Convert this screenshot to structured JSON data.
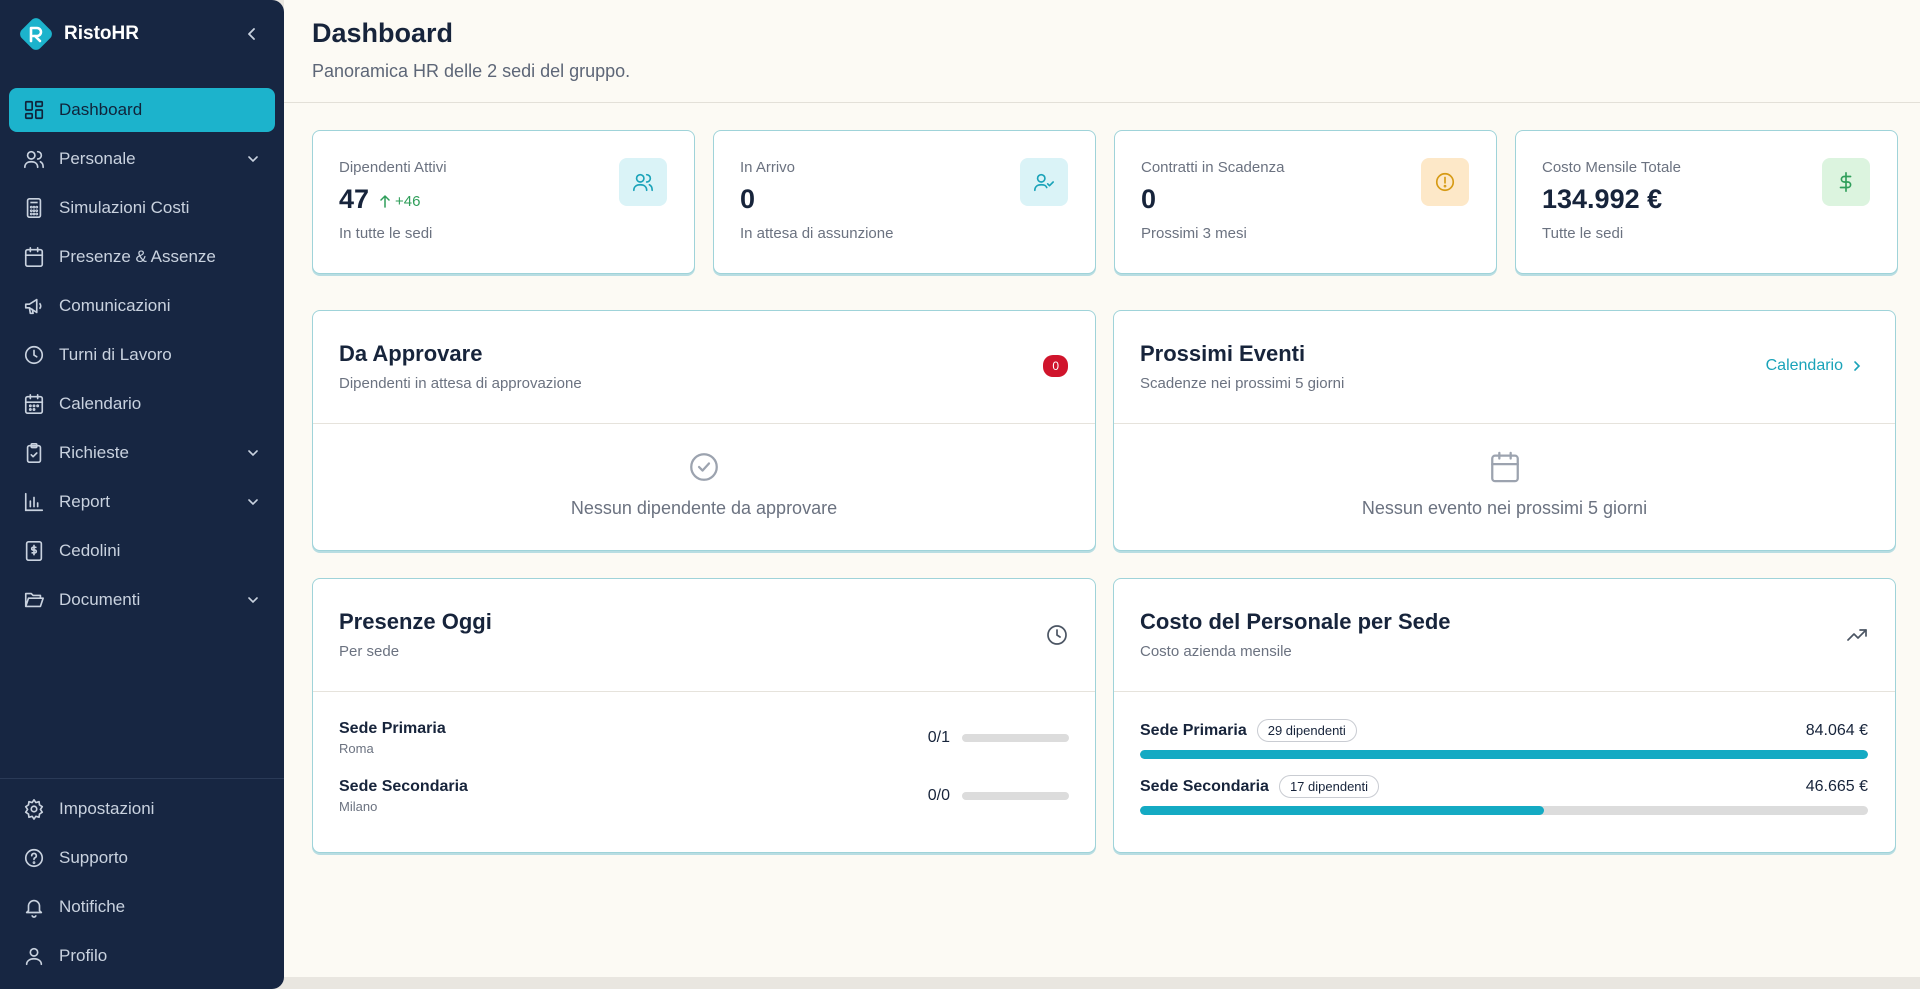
{
  "brand": {
    "name": "RistoHR"
  },
  "sidebar": {
    "items": [
      {
        "label": "Dashboard",
        "icon": "dashboard-icon",
        "active": true
      },
      {
        "label": "Personale",
        "icon": "users-icon",
        "expandable": true
      },
      {
        "label": "Simulazioni Costi",
        "icon": "calculator-icon"
      },
      {
        "label": "Presenze & Assenze",
        "icon": "calendar-icon"
      },
      {
        "label": "Comunicazioni",
        "icon": "megaphone-icon"
      },
      {
        "label": "Turni di Lavoro",
        "icon": "clock-icon"
      },
      {
        "label": "Calendario",
        "icon": "calendar-grid-icon"
      },
      {
        "label": "Richieste",
        "icon": "clipboard-check-icon",
        "expandable": true
      },
      {
        "label": "Report",
        "icon": "bar-chart-icon",
        "expandable": true
      },
      {
        "label": "Cedolini",
        "icon": "receipt-icon"
      },
      {
        "label": "Documenti",
        "icon": "folder-open-icon",
        "expandable": true
      }
    ],
    "bottom": [
      {
        "label": "Impostazioni",
        "icon": "gear-icon"
      },
      {
        "label": "Supporto",
        "icon": "help-circle-icon"
      },
      {
        "label": "Notifiche",
        "icon": "bell-icon"
      },
      {
        "label": "Profilo",
        "icon": "user-icon"
      }
    ]
  },
  "header": {
    "title": "Dashboard",
    "subtitle": "Panoramica HR delle 2 sedi del gruppo."
  },
  "stats": [
    {
      "label": "Dipendenti Attivi",
      "value": "47",
      "trend": "+46",
      "note": "In tutte le sedi",
      "icon": "users-icon",
      "icon_bg": "#daf3f7",
      "icon_color": "#1aa3b9"
    },
    {
      "label": "In Arrivo",
      "value": "0",
      "note": "In attesa di assunzione",
      "icon": "user-check-icon",
      "icon_bg": "#daf3f7",
      "icon_color": "#1aa3b9"
    },
    {
      "label": "Contratti in Scadenza",
      "value": "0",
      "note": "Prossimi 3 mesi",
      "icon": "alert-circle-icon",
      "icon_bg": "#fde8c8",
      "icon_color": "#d69a14"
    },
    {
      "label": "Costo Mensile Totale",
      "value": "134.992 €",
      "note": "Tutte le sedi",
      "icon": "dollar-icon",
      "icon_bg": "#dcf4df",
      "icon_color": "#2f9e5a"
    }
  ],
  "approve": {
    "title": "Da Approvare",
    "subtitle": "Dipendenti in attesa di approvazione",
    "badge": "0",
    "empty": "Nessun dipendente da approvare"
  },
  "events": {
    "title": "Prossimi Eventi",
    "subtitle": "Scadenze nei prossimi 5 giorni",
    "link": "Calendario",
    "empty": "Nessun evento nei prossimi 5 giorni"
  },
  "attendance": {
    "title": "Presenze Oggi",
    "subtitle": "Per sede",
    "rows": [
      {
        "name": "Sede Primaria",
        "city": "Roma",
        "count": "0/1",
        "progress": 0
      },
      {
        "name": "Sede Secondaria",
        "city": "Milano",
        "count": "0/0",
        "progress": 0
      }
    ]
  },
  "cost": {
    "title": "Costo del Personale per Sede",
    "subtitle": "Costo azienda mensile",
    "rows": [
      {
        "name": "Sede Primaria",
        "pill": "29 dipendenti",
        "value": "84.064 €",
        "progress": 1.0
      },
      {
        "name": "Sede Secondaria",
        "pill": "17 dipendenti",
        "value": "46.665 €",
        "progress": 0.555
      }
    ]
  }
}
